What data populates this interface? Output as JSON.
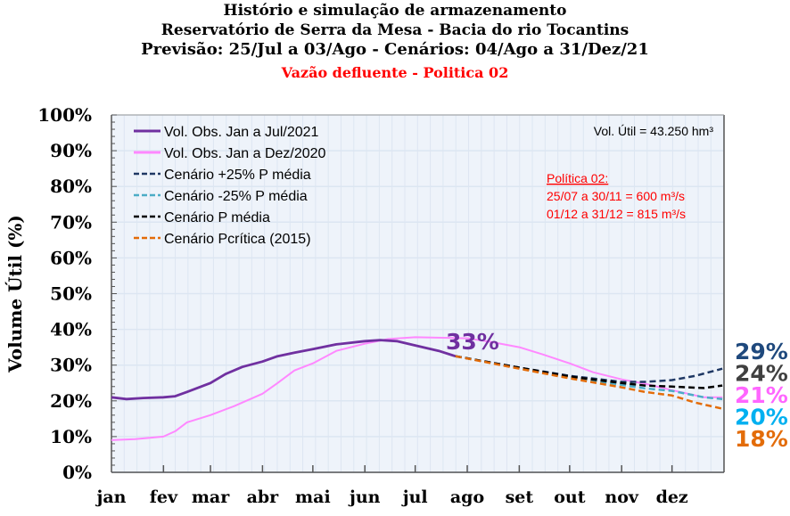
{
  "chart_data": {
    "type": "line",
    "title": "Histório e simulação de armazenamento",
    "subtitle_lines": [
      "Reservatório de Serra da Mesa - Bacia do rio Tocantins",
      "Previsão: 25/Jul a 03/Ago - Cenários: 04/Ago a 31/Dez/21"
    ],
    "subtitle_red": "Vazão defluente - Politica 02",
    "ylabel": "Volume  Útil (%)",
    "xlabel": "",
    "ylim": [
      0,
      100
    ],
    "yticks": [
      "0%",
      "10%",
      "20%",
      "30%",
      "40%",
      "50%",
      "60%",
      "70%",
      "80%",
      "90%",
      "100%"
    ],
    "xticks": [
      "jan",
      "fev",
      "mar",
      "abr",
      "mai",
      "jun",
      "jul",
      "ago",
      "set",
      "out",
      "nov",
      "dez"
    ],
    "grid": true,
    "legend_position": "top-left",
    "background_color": "#EEF3FA",
    "series": [
      {
        "name": "Vol. Obs. Jan a Jul/2021",
        "style": "solid",
        "color": "#7030A0",
        "x": [
          "01-01",
          "01-10",
          "01-20",
          "02-01",
          "02-08",
          "02-15",
          "03-01",
          "03-10",
          "03-20",
          "04-01",
          "04-10",
          "04-20",
          "05-01",
          "05-15",
          "06-01",
          "06-10",
          "06-20",
          "07-01",
          "07-15",
          "07-25"
        ],
        "y": [
          21,
          20.5,
          20.8,
          21,
          21.3,
          22.5,
          25,
          27.5,
          29.5,
          31,
          32.5,
          33.5,
          34.5,
          35.8,
          36.7,
          37,
          36.7,
          35.5,
          34,
          32.5
        ]
      },
      {
        "name": "Vol. Obs. Jan a Dez/2020",
        "style": "solid",
        "color": "#FF88FF",
        "x": [
          "01-01",
          "01-15",
          "02-01",
          "02-08",
          "02-15",
          "03-01",
          "03-15",
          "04-01",
          "04-10",
          "04-20",
          "05-01",
          "05-15",
          "06-01",
          "06-15",
          "07-01",
          "08-01",
          "08-15",
          "09-01",
          "09-15",
          "10-01",
          "10-15",
          "11-01",
          "11-15",
          "12-01",
          "12-20",
          "12-31"
        ],
        "y": [
          9,
          9.3,
          10,
          11.5,
          14,
          16,
          18.5,
          22,
          25,
          28.5,
          30.5,
          34,
          36,
          37.3,
          37.8,
          37.5,
          36.5,
          35,
          33,
          30.5,
          28,
          26,
          24.8,
          23,
          21,
          21
        ]
      },
      {
        "name": "Cenário +25% P média",
        "style": "dashed",
        "color": "#1F3864",
        "x": [
          "07-25",
          "09-01",
          "10-01",
          "11-01",
          "11-15",
          "12-01",
          "12-15",
          "12-31"
        ],
        "y": [
          32.5,
          29.3,
          27,
          25.3,
          25.3,
          25.8,
          27,
          29
        ]
      },
      {
        "name": "Cenário -25% P média",
        "style": "dashed",
        "color": "#4BACC6",
        "x": [
          "07-25",
          "09-01",
          "10-01",
          "11-01",
          "11-15",
          "12-01",
          "12-20",
          "12-31"
        ],
        "y": [
          32.5,
          29.2,
          26.6,
          24.5,
          23.5,
          22.8,
          21,
          20.5
        ]
      },
      {
        "name": "Cenário P média",
        "style": "dashed",
        "color": "#000000",
        "x": [
          "07-25",
          "09-01",
          "10-01",
          "11-01",
          "11-15",
          "12-01",
          "12-20",
          "12-31"
        ],
        "y": [
          32.5,
          29.3,
          26.8,
          25,
          24.3,
          24,
          23.6,
          24.3
        ]
      },
      {
        "name": "Cenário Pcrítica (2015)",
        "style": "dashed",
        "color": "#E36C09",
        "x": [
          "07-25",
          "09-01",
          "10-01",
          "11-01",
          "11-15",
          "12-01",
          "12-15",
          "12-31"
        ],
        "y": [
          32.5,
          29,
          26.3,
          23.8,
          22.5,
          21.5,
          19.5,
          17.8
        ]
      }
    ],
    "annotations": {
      "current_label": {
        "text": "33%",
        "color": "#7030A0"
      },
      "vol_util": "Vol. Útil  = 43.250 hm³",
      "policy_title": "Política 02:",
      "policy_lines": [
        "25/07 a 30/11 = 600 m³/s",
        "01/12 a 31/12 = 815 m³/s"
      ],
      "end_labels": [
        {
          "text": "29%",
          "color": "#1F497D"
        },
        {
          "text": "24%",
          "color": "#404040"
        },
        {
          "text": "21%",
          "color": "#FF66FF"
        },
        {
          "text": "20%",
          "color": "#00B0F0"
        },
        {
          "text": "18%",
          "color": "#E36C09"
        }
      ]
    }
  }
}
